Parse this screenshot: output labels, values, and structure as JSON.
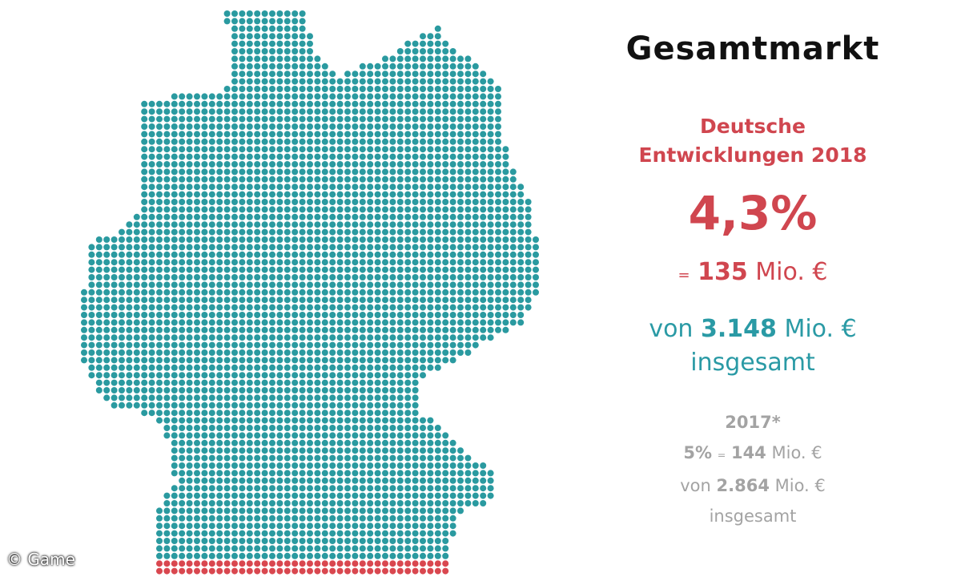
{
  "header": {
    "title": "Gesamtmarkt"
  },
  "current": {
    "label_lines": [
      "Deutsche",
      "Entwicklungen 2018"
    ],
    "share": "4,3%",
    "amount": {
      "eq": "=",
      "number": "135",
      "unit": "Mio. €"
    },
    "total": {
      "prefix": "von",
      "number": "3.148",
      "unit": "Mio. €",
      "suffix": "insgesamt"
    }
  },
  "previous": {
    "label": "2017*",
    "share": "5%",
    "eq": "=",
    "number": "144",
    "unit": "Mio. €",
    "total_prefix": "von",
    "total_number": "2.864",
    "total_unit": "Mio. €",
    "total_suffix": "insgesamt"
  },
  "credit": "© Game"
}
